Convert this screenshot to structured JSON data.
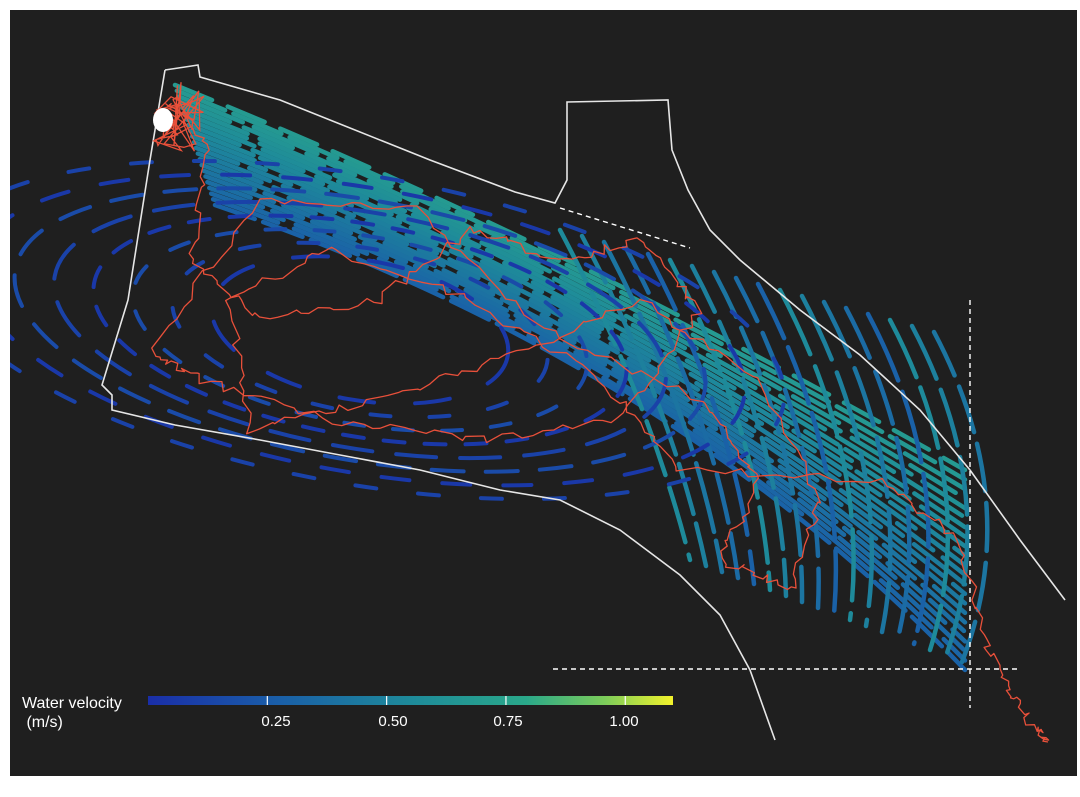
{
  "legend": {
    "title_line1": "Water velocity",
    "title_line2": " (m/s)",
    "ticks": [
      "0.25",
      "0.50",
      "0.75",
      "1.00"
    ],
    "range": [
      0.0,
      1.1
    ]
  },
  "colors": {
    "background": "#1f1f1f",
    "boundary": "#e6e6e6",
    "fish_track": "#e8503a",
    "marker": "#ffffff",
    "colorscale": [
      "#1a2ea8",
      "#1a5fa8",
      "#1e8a9a",
      "#2aa88a",
      "#7ccc5a",
      "#f2f22c"
    ]
  }
}
